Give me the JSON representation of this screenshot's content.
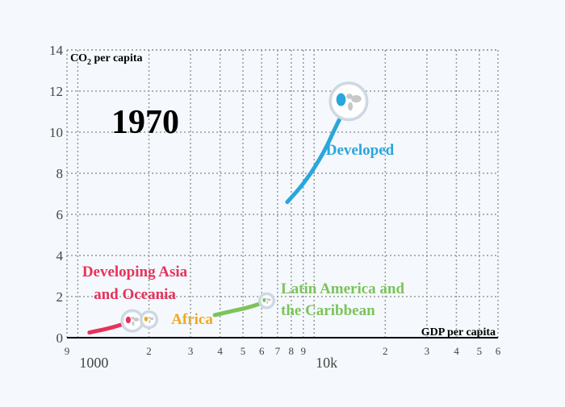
{
  "chart_data": {
    "type": "line",
    "xscale": "log",
    "xlim": [
      900,
      60000
    ],
    "ylim": [
      0,
      14
    ],
    "xlabel": "GDP per capita",
    "ylabel_main": "CO",
    "ylabel_sub": "2",
    "ylabel_rest": " per capita",
    "year": "1970",
    "grid": true,
    "x_ticks": [
      {
        "value": 900,
        "label": "9",
        "major": false
      },
      {
        "value": 1000,
        "label": "1000",
        "major": true
      },
      {
        "value": 2000,
        "label": "2",
        "major": false
      },
      {
        "value": 3000,
        "label": "3",
        "major": false
      },
      {
        "value": 4000,
        "label": "4",
        "major": false
      },
      {
        "value": 5000,
        "label": "5",
        "major": false
      },
      {
        "value": 6000,
        "label": "6",
        "major": false
      },
      {
        "value": 7000,
        "label": "7",
        "major": false
      },
      {
        "value": 8000,
        "label": "8",
        "major": false
      },
      {
        "value": 9000,
        "label": "9",
        "major": false
      },
      {
        "value": 10000,
        "label": "10k",
        "major": true
      },
      {
        "value": 20000,
        "label": "2",
        "major": false
      },
      {
        "value": 30000,
        "label": "3",
        "major": false
      },
      {
        "value": 40000,
        "label": "4",
        "major": false
      },
      {
        "value": 50000,
        "label": "5",
        "major": false
      },
      {
        "value": 60000,
        "label": "6",
        "major": false
      }
    ],
    "y_ticks": [
      0,
      2,
      4,
      6,
      8,
      10,
      12,
      14
    ],
    "series": [
      {
        "name": "Developed",
        "label_lines": [
          "Developed"
        ],
        "color": "#2aa6dc",
        "x": [
          7700,
          9200,
          11000,
          12500,
          14000
        ],
        "y": [
          6.6,
          7.6,
          9.0,
          10.4,
          11.5
        ],
        "marker_icon": "globe-icon"
      },
      {
        "name": "Developing Asia and Oceania",
        "label_lines": [
          "Developing Asia",
          "and Oceania"
        ],
        "color": "#e8325a",
        "x": [
          1120,
          1350,
          1550,
          1700
        ],
        "y": [
          0.25,
          0.45,
          0.65,
          0.82
        ],
        "marker_icon": "globe-icon"
      },
      {
        "name": "Africa",
        "label_lines": [
          "Africa"
        ],
        "color": "#f4a81d",
        "x": [
          1750,
          1850,
          2000
        ],
        "y": [
          0.75,
          0.8,
          0.88
        ],
        "marker_icon": "globe-icon"
      },
      {
        "name": "Latin America and the Caribbean",
        "label_lines": [
          "Latin America and",
          "the Caribbean"
        ],
        "color": "#7cc35a",
        "x": [
          3800,
          4500,
          5200,
          5900,
          6300
        ],
        "y": [
          1.1,
          1.3,
          1.45,
          1.65,
          1.8
        ],
        "marker_icon": "globe-icon"
      }
    ]
  }
}
